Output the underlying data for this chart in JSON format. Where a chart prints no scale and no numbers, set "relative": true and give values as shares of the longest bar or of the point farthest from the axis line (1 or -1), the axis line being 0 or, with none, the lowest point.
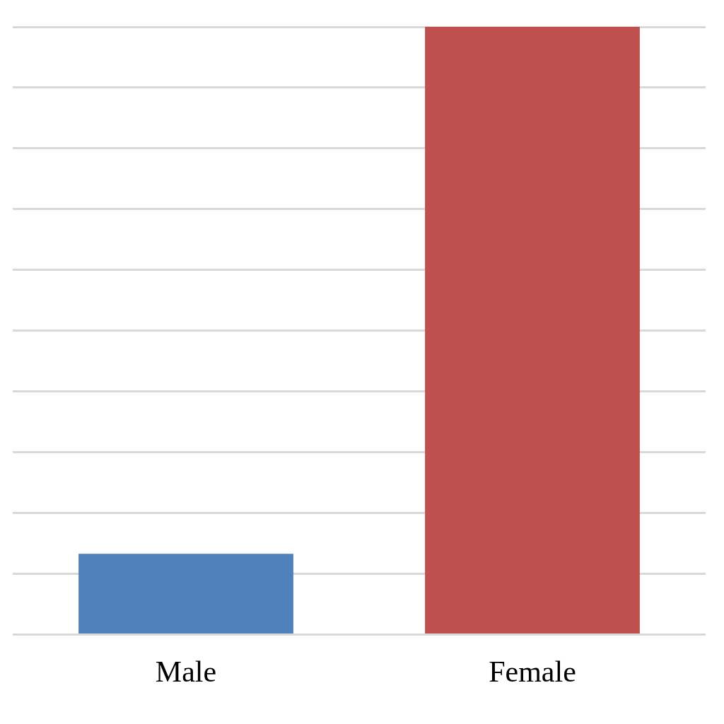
{
  "chart_data": {
    "type": "bar",
    "categories": [
      "Male",
      "Female"
    ],
    "values": [
      0.133,
      1
    ],
    "colors": [
      "#4f81bd",
      "#c0504d"
    ],
    "relative": true,
    "grid": "y",
    "legend": false
  }
}
